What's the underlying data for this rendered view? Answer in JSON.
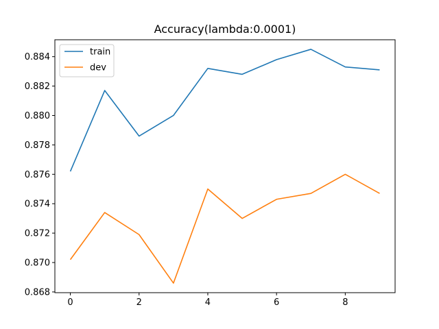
{
  "chart_data": {
    "type": "line",
    "title": "Accuracy(lambda:0.0001)",
    "xlabel": "",
    "ylabel": "",
    "x": [
      0,
      1,
      2,
      3,
      4,
      5,
      6,
      7,
      8,
      9
    ],
    "series": [
      {
        "name": "train",
        "color": "#1f77b4",
        "values": [
          0.8762,
          0.8817,
          0.8786,
          0.88,
          0.8832,
          0.8828,
          0.8838,
          0.8845,
          0.8833,
          0.8831
        ]
      },
      {
        "name": "dev",
        "color": "#ff7f0e",
        "values": [
          0.8702,
          0.8734,
          0.8719,
          0.8686,
          0.875,
          0.873,
          0.8743,
          0.8747,
          0.876,
          0.8747
        ]
      }
    ],
    "xlim": [
      -0.45,
      9.45
    ],
    "ylim": [
      0.86795,
      0.88515
    ],
    "xticks": [
      0,
      2,
      4,
      6,
      8
    ],
    "xtick_labels": [
      "0",
      "2",
      "4",
      "6",
      "8"
    ],
    "yticks": [
      0.868,
      0.87,
      0.872,
      0.874,
      0.876,
      0.878,
      0.88,
      0.882,
      0.884
    ],
    "ytick_labels": [
      "0.868",
      "0.870",
      "0.872",
      "0.874",
      "0.876",
      "0.878",
      "0.880",
      "0.882",
      "0.884"
    ],
    "grid": false,
    "legend_position": "upper-left"
  }
}
